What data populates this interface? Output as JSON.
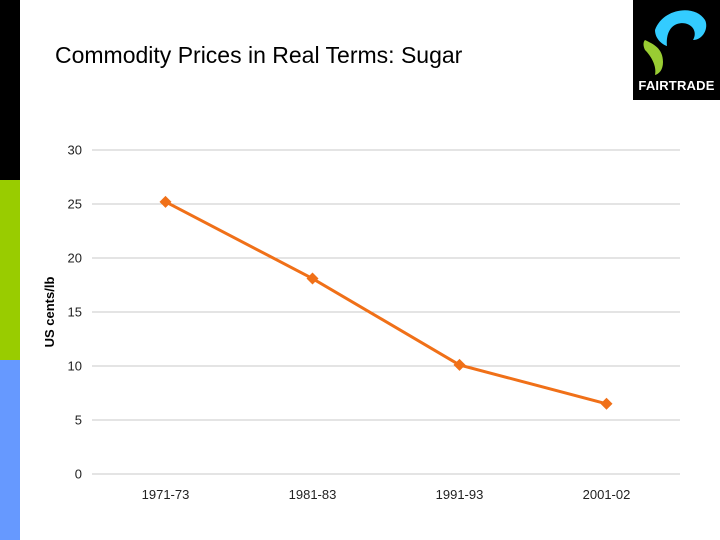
{
  "slide": {
    "title": "Commodity Prices in Real Terms: Sugar"
  },
  "logo": {
    "text": "FAIRTRADE",
    "colors": {
      "background": "#000000",
      "blue": "#33ccff",
      "green": "#99cc33"
    }
  },
  "side_bar_colors": [
    "#000000",
    "#99cc00",
    "#6699ff"
  ],
  "chart_data": {
    "type": "line",
    "title": "",
    "xlabel": "",
    "ylabel": "US cents/lb",
    "categories": [
      "1971-73",
      "1981-83",
      "1991-93",
      "2001-02"
    ],
    "series": [
      {
        "values": [
          25.2,
          18.1,
          10.1,
          6.5
        ],
        "color": "#f07018",
        "marker": "diamond"
      }
    ],
    "ylim": [
      0,
      30
    ],
    "yticks": [
      0,
      5,
      10,
      15,
      20,
      25,
      30
    ],
    "grid": true,
    "legend": "none"
  }
}
